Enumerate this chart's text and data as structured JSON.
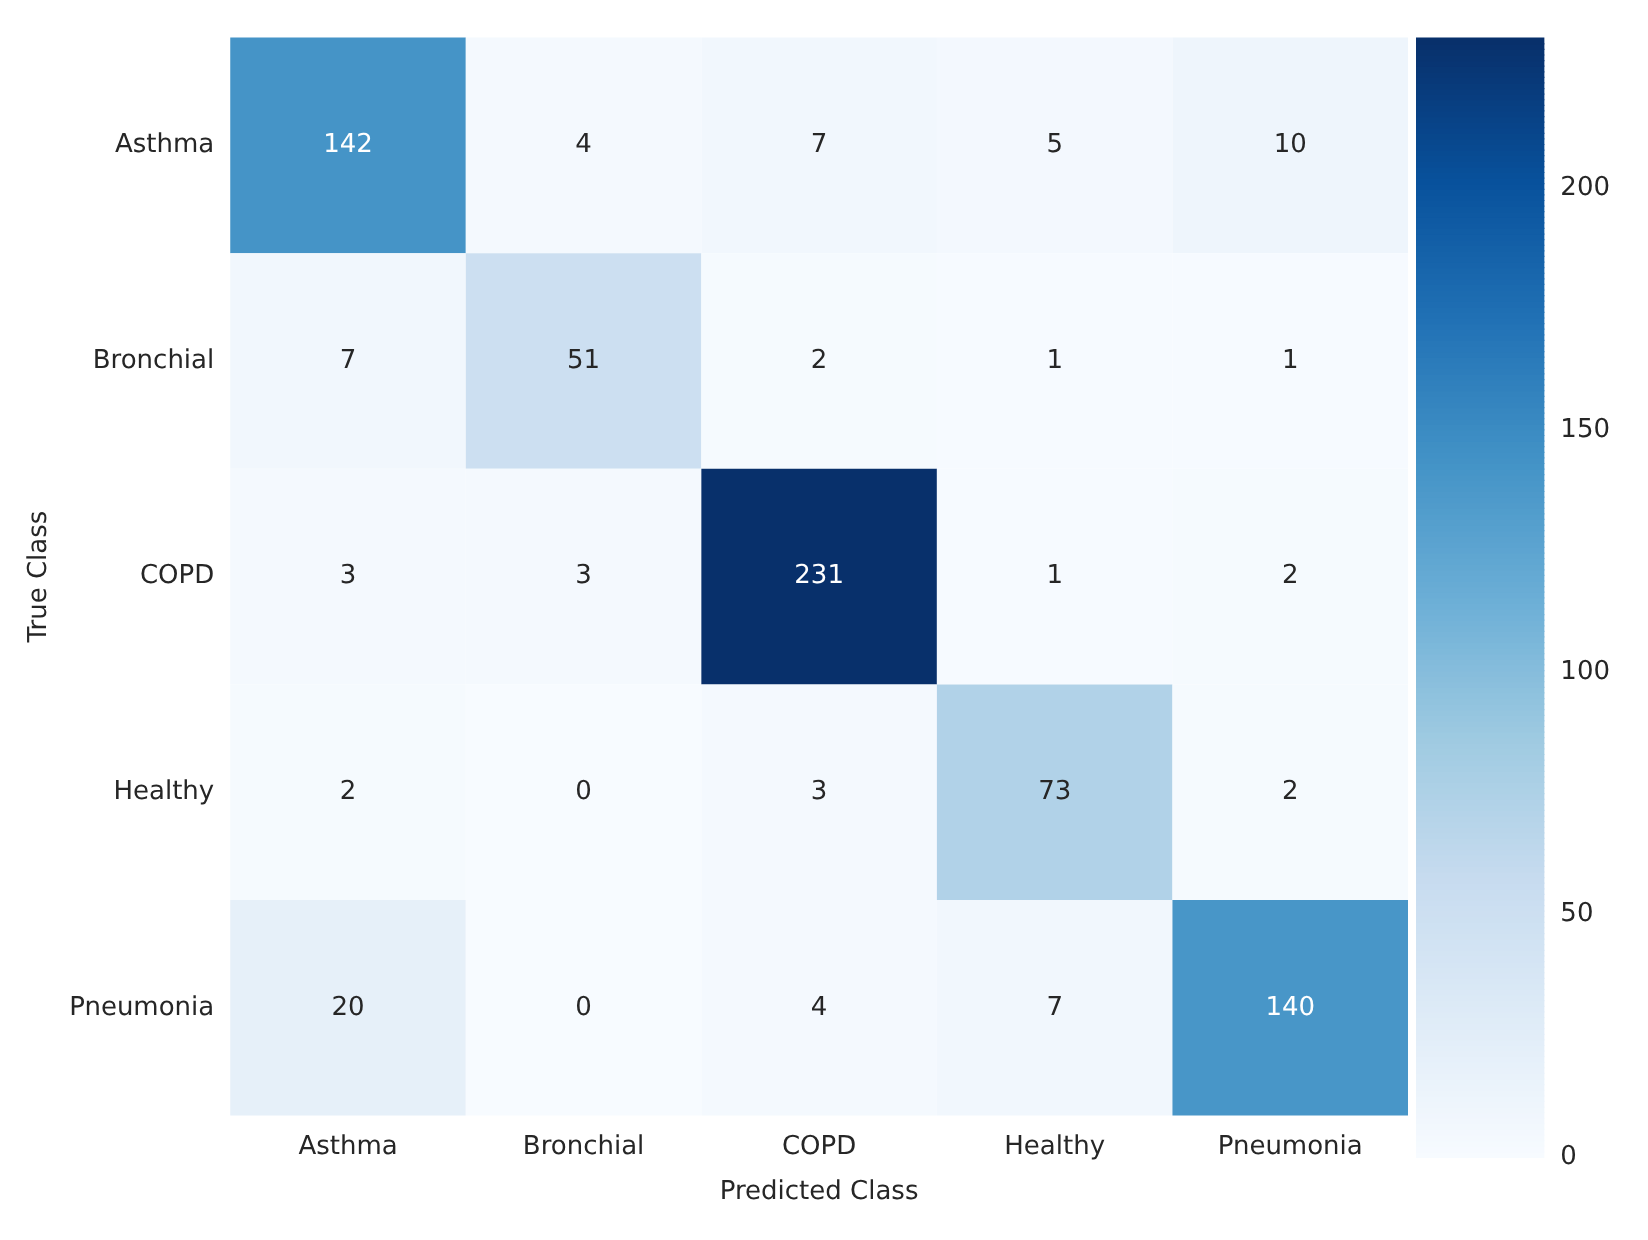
{
  "chart_data": {
    "type": "heatmap",
    "xlabel": "Predicted Class",
    "ylabel": "True Class",
    "categories": [
      "Asthma",
      "Bronchial",
      "COPD",
      "Healthy",
      "Pneumonia"
    ],
    "y_categories": [
      "Asthma",
      "Bronchial",
      "COPD",
      "Healthy",
      "Pneumonia"
    ],
    "cells": [
      [
        142,
        4,
        7,
        5,
        10
      ],
      [
        7,
        51,
        2,
        1,
        1
      ],
      [
        3,
        3,
        231,
        1,
        2
      ],
      [
        2,
        0,
        3,
        73,
        2
      ],
      [
        20,
        0,
        4,
        7,
        140
      ]
    ],
    "clim": [
      0,
      231
    ],
    "cticks": [
      0,
      50,
      100,
      150,
      200
    ],
    "data_labels": true
  }
}
